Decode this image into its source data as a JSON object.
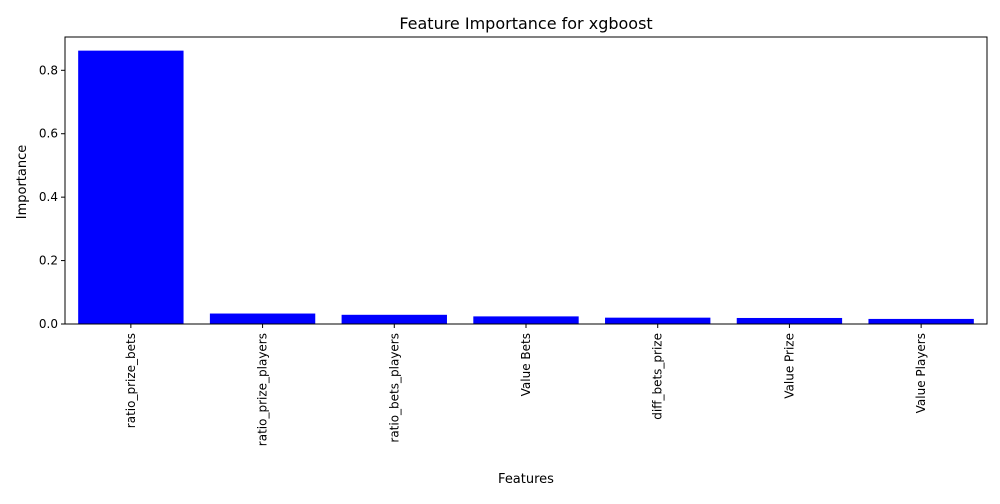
{
  "chart_data": {
    "type": "bar",
    "title": "Feature Importance for xgboost",
    "xlabel": "Features",
    "ylabel": "Importance",
    "categories": [
      "ratio_prize_bets",
      "ratio_prize_players",
      "ratio_bets_players",
      "Value Bets",
      "diff_bets_prize",
      "Value Prize",
      "Value Players"
    ],
    "values": [
      0.862,
      0.033,
      0.029,
      0.024,
      0.02,
      0.019,
      0.016
    ],
    "ylim": [
      0,
      0.905
    ],
    "yticks": [
      0.0,
      0.2,
      0.4,
      0.6,
      0.8
    ],
    "ytick_labels": [
      "0.0",
      "0.2",
      "0.4",
      "0.6",
      "0.8"
    ],
    "bar_color": "#0000ff",
    "grid": false,
    "legend": "none"
  }
}
